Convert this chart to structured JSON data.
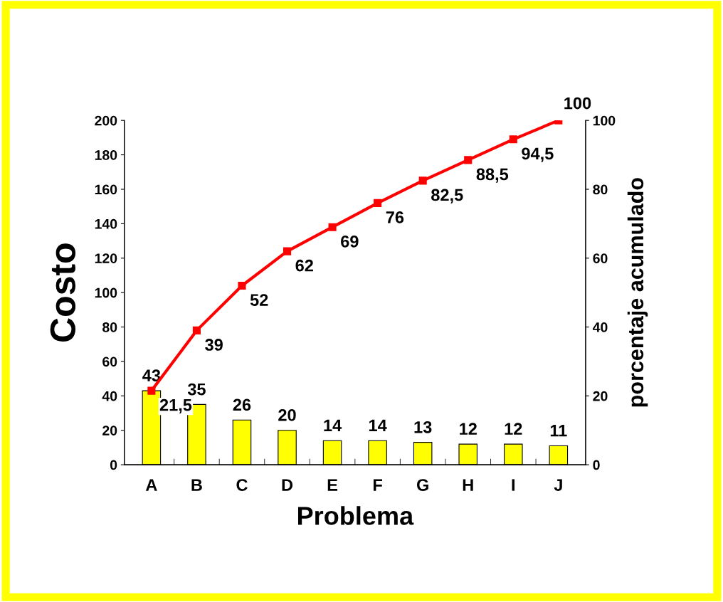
{
  "chart_data": {
    "type": "bar",
    "xlabel": "Problema",
    "ylabel": "Costo",
    "y2label": "porcentaje acumulado",
    "categories": [
      "A",
      "B",
      "C",
      "D",
      "E",
      "F",
      "G",
      "H",
      "I",
      "J"
    ],
    "series": [
      {
        "color": "#ffff00",
        "values": [
          43,
          35,
          26,
          20,
          14,
          14,
          13,
          12,
          12,
          11
        ],
        "data_labels": true
      },
      {
        "type": "line",
        "axis": "y2",
        "color": "#ff0000",
        "marker": "square",
        "line_style": "solid",
        "values": [
          21.5,
          39,
          52,
          62,
          69,
          76,
          82.5,
          88.5,
          94.5,
          100
        ],
        "value_labels": [
          "21,5",
          "39",
          "52",
          "62",
          "69",
          "76",
          "82,5",
          "88,5",
          "94,5",
          "100"
        ]
      }
    ],
    "ylim": [
      0,
      200
    ],
    "yticks": [
      0,
      20,
      40,
      60,
      80,
      100,
      120,
      140,
      160,
      180,
      200
    ],
    "y2lim": [
      0,
      100
    ],
    "y2ticks": [
      0,
      20,
      40,
      60,
      80,
      100
    ],
    "grid": false,
    "legend": false
  }
}
